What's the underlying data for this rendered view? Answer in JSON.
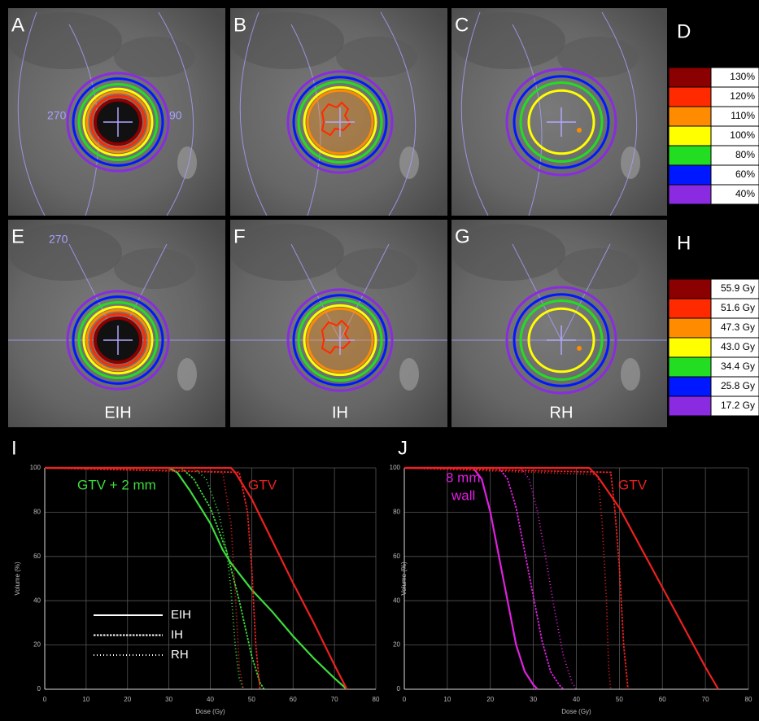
{
  "image_panels": [
    {
      "letter": "A",
      "angles": [
        "270",
        "90"
      ]
    },
    {
      "letter": "B"
    },
    {
      "letter": "C"
    },
    {
      "letter": "E",
      "angles": [
        "270"
      ],
      "caption": "EIH"
    },
    {
      "letter": "F",
      "caption": "IH"
    },
    {
      "letter": "G",
      "caption": "RH"
    }
  ],
  "legends": [
    {
      "letter": "D",
      "rows": [
        {
          "color": "#8b0000",
          "label": "130%"
        },
        {
          "color": "#ff2a00",
          "label": "120%"
        },
        {
          "color": "#ff8c00",
          "label": "110%"
        },
        {
          "color": "#ffff00",
          "label": "100%"
        },
        {
          "color": "#22dd22",
          "label": "80%"
        },
        {
          "color": "#0018ff",
          "label": "60%"
        },
        {
          "color": "#8a2be2",
          "label": "40%"
        }
      ]
    },
    {
      "letter": "H",
      "rows": [
        {
          "color": "#8b0000",
          "label": "55.9 Gy"
        },
        {
          "color": "#ff2a00",
          "label": "51.6 Gy"
        },
        {
          "color": "#ff8c00",
          "label": "47.3 Gy"
        },
        {
          "color": "#ffff00",
          "label": "43.0 Gy"
        },
        {
          "color": "#22dd22",
          "label": "34.4 Gy"
        },
        {
          "color": "#0018ff",
          "label": "25.8 Gy"
        },
        {
          "color": "#8a2be2",
          "label": "17.2 Gy"
        }
      ]
    }
  ],
  "chart_data": [
    {
      "type": "line",
      "letter": "I",
      "xlabel": "Dose (Gy)",
      "ylabel": "Volume (%)",
      "xlim": [
        0,
        80
      ],
      "ylim": [
        0,
        100
      ],
      "xticks": [
        0,
        10,
        20,
        30,
        40,
        50,
        60,
        70,
        80
      ],
      "yticks": [
        0,
        20,
        40,
        60,
        80,
        100
      ],
      "grid": true,
      "legend": "lower left",
      "groups": [
        {
          "label": [
            "GTV + 2 mm"
          ],
          "color": "#3ddc3d",
          "series": [
            {
              "name": "EIH",
              "dash": "solid",
              "x": [
                0,
                30,
                32,
                35,
                40,
                43,
                45,
                50,
                55,
                60,
                65,
                70,
                73
              ],
              "values": [
                100,
                100,
                98,
                90,
                75,
                63,
                57,
                45,
                35,
                24,
                14,
                5,
                0
              ]
            },
            {
              "name": "IH",
              "dash": "dotted",
              "x": [
                0,
                33,
                36,
                40,
                44,
                47,
                50,
                52,
                53
              ],
              "values": [
                100,
                100,
                95,
                82,
                62,
                40,
                15,
                3,
                0
              ]
            },
            {
              "name": "RH",
              "dash": "fine-dotted",
              "x": [
                0,
                36,
                39,
                42,
                44,
                45,
                46,
                47,
                48
              ],
              "values": [
                100,
                100,
                95,
                80,
                62,
                45,
                20,
                5,
                0
              ]
            }
          ]
        },
        {
          "label": [
            "GTV"
          ],
          "color": "#ee2020",
          "series": [
            {
              "dash": "solid",
              "x": [
                0,
                45,
                46,
                50,
                55,
                60,
                65,
                70,
                73
              ],
              "values": [
                100,
                100,
                98,
                86,
                67,
                48,
                30,
                11,
                0
              ]
            },
            {
              "dash": "dotted",
              "x": [
                0,
                47,
                49,
                50,
                51,
                52
              ],
              "values": [
                100,
                98,
                80,
                55,
                20,
                0
              ]
            },
            {
              "dash": "fine-dotted",
              "x": [
                0,
                43,
                45,
                46,
                47,
                48
              ],
              "values": [
                100,
                98,
                75,
                45,
                10,
                0
              ]
            }
          ]
        }
      ]
    },
    {
      "type": "line",
      "letter": "J",
      "xlabel": "Dose (Gy)",
      "ylabel": "Volume (%)",
      "xlim": [
        0,
        80
      ],
      "ylim": [
        0,
        100
      ],
      "xticks": [
        0,
        10,
        20,
        30,
        40,
        50,
        60,
        70,
        80
      ],
      "yticks": [
        0,
        20,
        40,
        60,
        80,
        100
      ],
      "grid": true,
      "groups": [
        {
          "label": [
            "8 mm",
            "wall"
          ],
          "color": "#e020e0",
          "series": [
            {
              "dash": "solid",
              "x": [
                0,
                16,
                18,
                20,
                22,
                24,
                26,
                28,
                30,
                31
              ],
              "values": [
                100,
                100,
                95,
                80,
                60,
                40,
                20,
                8,
                2,
                0
              ]
            },
            {
              "dash": "dotted",
              "x": [
                0,
                22,
                24,
                26,
                28,
                30,
                32,
                34,
                36,
                37
              ],
              "values": [
                100,
                100,
                95,
                82,
                62,
                42,
                22,
                8,
                2,
                0
              ]
            },
            {
              "dash": "fine-dotted",
              "x": [
                0,
                27,
                29,
                31,
                33,
                35,
                37,
                39,
                40
              ],
              "values": [
                100,
                100,
                95,
                80,
                58,
                35,
                15,
                3,
                0
              ]
            }
          ]
        },
        {
          "label": [
            "GTV"
          ],
          "color": "#ee2020",
          "series": [
            {
              "dash": "solid",
              "x": [
                0,
                43,
                45,
                50,
                55,
                60,
                65,
                70,
                73
              ],
              "values": [
                100,
                100,
                96,
                82,
                64,
                46,
                28,
                10,
                0
              ]
            },
            {
              "dash": "dotted",
              "x": [
                0,
                48,
                49,
                50,
                51,
                52
              ],
              "values": [
                100,
                98,
                80,
                55,
                20,
                0
              ]
            },
            {
              "dash": "fine-dotted",
              "x": [
                0,
                45,
                46,
                47,
                47.5,
                48
              ],
              "values": [
                100,
                97,
                75,
                40,
                10,
                0
              ]
            }
          ]
        }
      ]
    }
  ]
}
